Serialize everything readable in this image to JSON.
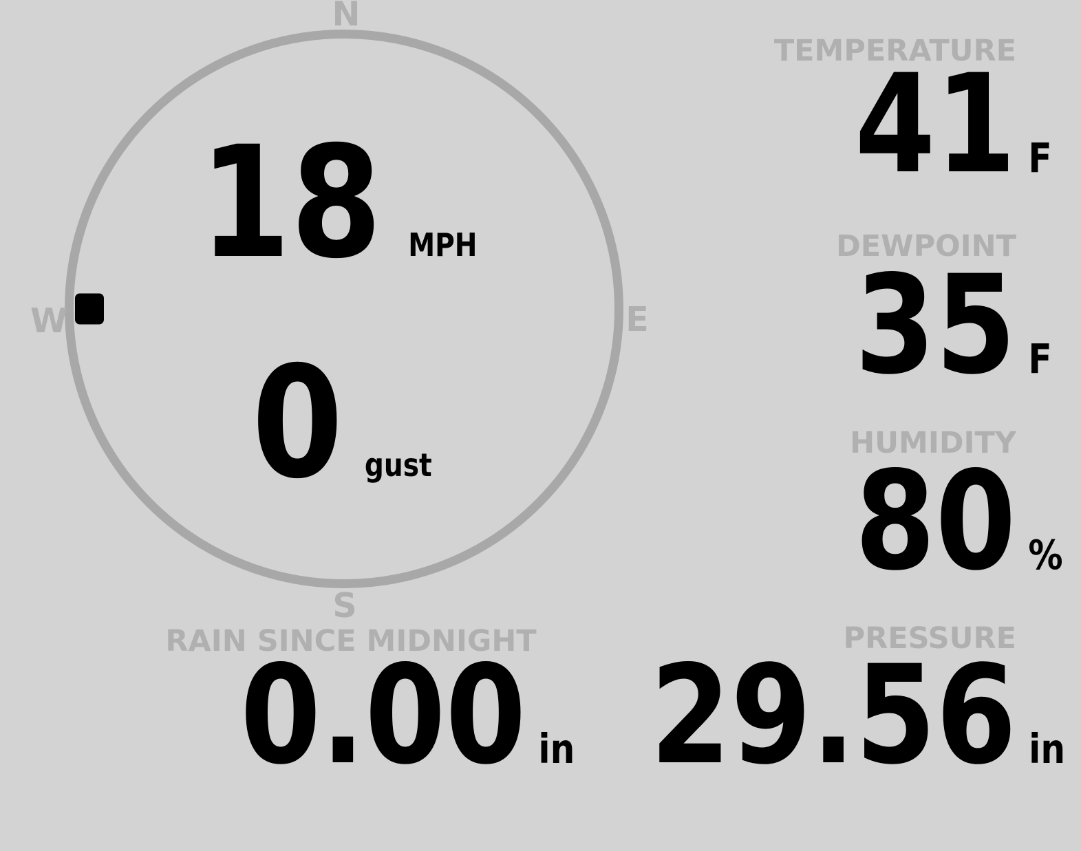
{
  "colors": {
    "background": "#d3d3d3",
    "muted_text": "#b0b0b0",
    "compass_ring": "#a8a8a8",
    "value_text": "#000000",
    "wind_marker": "#000000"
  },
  "wind": {
    "compass": {
      "north": "N",
      "east": "E",
      "south": "S",
      "west": "W"
    },
    "speed_value": "18",
    "speed_unit": "MPH",
    "gust_value": "0",
    "gust_label": "gust",
    "direction": {
      "cardinal": "W",
      "degrees": 270
    }
  },
  "metrics": {
    "temperature": {
      "label": "TEMPERATURE",
      "value": "41",
      "unit": "F"
    },
    "dewpoint": {
      "label": "DEWPOINT",
      "value": "35",
      "unit": "F"
    },
    "humidity": {
      "label": "HUMIDITY",
      "value": "80",
      "unit": "%"
    },
    "pressure": {
      "label": "PRESSURE",
      "value": "29.56",
      "unit": "in"
    },
    "rain": {
      "label": "RAIN SINCE MIDNIGHT",
      "value": "0.00",
      "unit": "in"
    }
  }
}
